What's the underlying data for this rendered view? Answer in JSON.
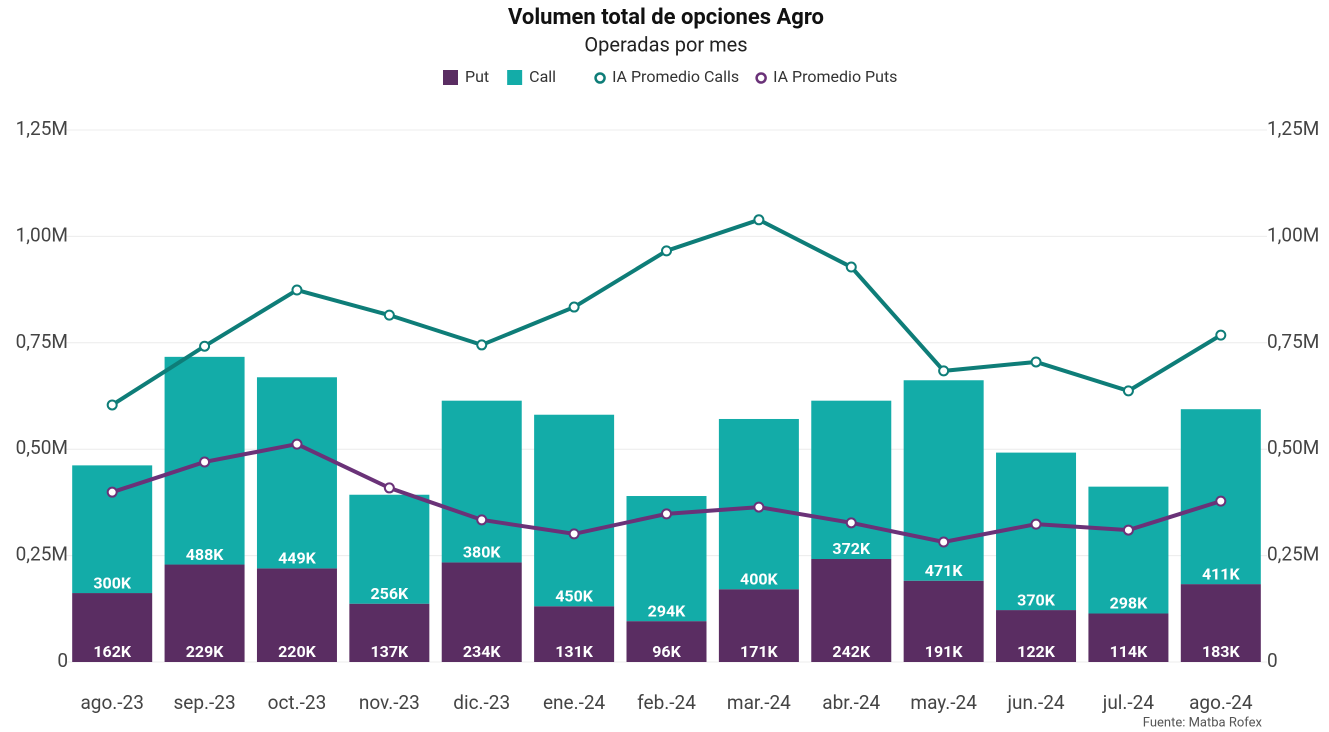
{
  "chart_data": {
    "type": "bar",
    "title": "Volumen total de opciones Agro",
    "subtitle": "Operadas por mes",
    "source": "Fuente: Matba Rofex",
    "categories": [
      "ago.-23",
      "sep.-23",
      "oct.-23",
      "nov.-23",
      "dic.-23",
      "ene.-24",
      "feb.-24",
      "mar.-24",
      "abr.-24",
      "may.-24",
      "jun.-24",
      "jul.-24",
      "ago.-24"
    ],
    "series": [
      {
        "name": "Put",
        "type": "bar",
        "color": "#5a2d62",
        "values": [
          162000,
          229000,
          220000,
          137000,
          234000,
          131000,
          96000,
          171000,
          242000,
          191000,
          122000,
          114000,
          183000
        ],
        "value_labels": [
          "162K",
          "229K",
          "220K",
          "137K",
          "234K",
          "131K",
          "96K",
          "171K",
          "242K",
          "191K",
          "122K",
          "114K",
          "183K"
        ]
      },
      {
        "name": "Call",
        "type": "bar",
        "color": "#13aca8",
        "values": [
          300000,
          488000,
          449000,
          256000,
          380000,
          450000,
          294000,
          400000,
          372000,
          471000,
          370000,
          298000,
          411000
        ],
        "value_labels": [
          "300K",
          "488K",
          "449K",
          "256K",
          "380K",
          "450K",
          "294K",
          "400K",
          "372K",
          "471K",
          "370K",
          "298K",
          "411K"
        ]
      },
      {
        "name": "IA Promedio Calls",
        "type": "line",
        "axis": "y2",
        "color": "#0e7d78",
        "values": [
          604000,
          742000,
          874000,
          815000,
          745000,
          834000,
          966000,
          1039000,
          928000,
          684000,
          705000,
          637000,
          768000
        ]
      },
      {
        "name": "IA Promedio Puts",
        "type": "line",
        "axis": "y2",
        "color": "#6a3278",
        "values": [
          399000,
          470000,
          512000,
          409000,
          334000,
          301000,
          348000,
          364000,
          327000,
          282000,
          324000,
          310000,
          378000
        ]
      }
    ],
    "ylim": [
      0,
      1250000
    ],
    "yticks": [
      0,
      {
        "value": 250000,
        "label": "0,25M"
      },
      {
        "value": 500000,
        "label": "0,50M"
      },
      {
        "value": 750000,
        "label": "0,75M"
      },
      {
        "value": 1000000,
        "label": "1,00M"
      },
      {
        "value": 1250000,
        "label": "1,25M"
      }
    ],
    "y2lim": [
      0,
      1250000
    ],
    "y2ticks": [
      0,
      {
        "value": 250000,
        "label": "0,25M"
      },
      {
        "value": 500000,
        "label": "0,50M"
      },
      {
        "value": 750000,
        "label": "0,75M"
      },
      {
        "value": 1000000,
        "label": "1,00M"
      },
      {
        "value": 1250000,
        "label": "1,25M"
      }
    ],
    "grid": true,
    "legend": "top"
  }
}
